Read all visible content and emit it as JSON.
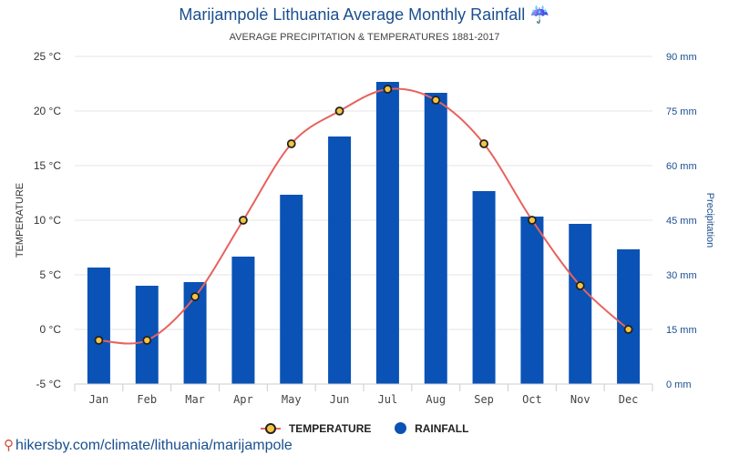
{
  "title": "Marijampolė Lithuania Average Monthly Rainfall",
  "title_icon": "☔",
  "subtitle": "AVERAGE PRECIPITATION & TEMPERATURES 1881-2017",
  "source": "hikersby.com/climate/lithuania/marijampole",
  "legend": {
    "temperature": "TEMPERATURE",
    "rainfall": "RAINFALL"
  },
  "colors": {
    "bars": "#0a52b5",
    "line": "#e8625e",
    "marker_fill": "#f6c342",
    "marker_stroke": "#222222",
    "left_axis": "#333333",
    "right_axis": "#1a4f8f"
  },
  "chart_data": {
    "type": "bar",
    "categories": [
      "Jan",
      "Feb",
      "Mar",
      "Apr",
      "May",
      "Jun",
      "Jul",
      "Aug",
      "Sep",
      "Oct",
      "Nov",
      "Dec"
    ],
    "series": [
      {
        "name": "RAINFALL",
        "axis": "right",
        "unit": "mm",
        "values": [
          32,
          27,
          28,
          35,
          52,
          68,
          83,
          80,
          53,
          46,
          44,
          37
        ]
      },
      {
        "name": "TEMPERATURE",
        "axis": "left",
        "unit": "°C",
        "type": "line",
        "values": [
          -1,
          -1,
          3,
          10,
          17,
          20,
          22,
          21,
          17,
          10,
          4,
          0
        ]
      }
    ],
    "ylabel_left": "TEMPERATURE",
    "ylabel_right": "Precipitation",
    "ylim_left": [
      -5,
      25
    ],
    "ylim_right": [
      0,
      90
    ],
    "left_ticks": [
      "-5 °C",
      "0 °C",
      "5 °C",
      "10 °C",
      "15 °C",
      "20 °C",
      "25 °C"
    ],
    "right_ticks": [
      "0 mm",
      "15 mm",
      "30 mm",
      "45 mm",
      "60 mm",
      "75 mm",
      "90 mm"
    ],
    "grid": true,
    "legend_position": "bottom"
  }
}
